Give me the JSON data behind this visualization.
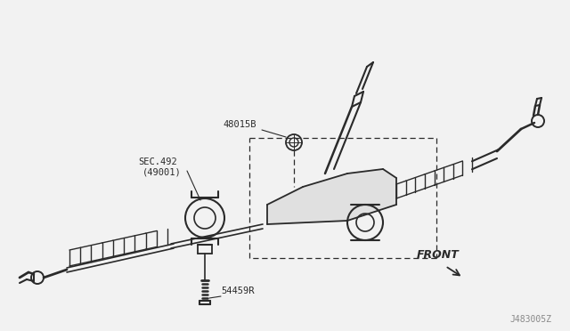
{
  "bg_color": "#f2f2f2",
  "line_color": "#2a2a2a",
  "text_color": "#2a2a2a",
  "watermark": "J483005Z",
  "label_48015B": "48015B",
  "label_sec492": "SEC.492",
  "label_49001": "(49001)",
  "label_54459R": "54459R",
  "label_front": "FRONT",
  "figsize": [
    6.4,
    3.72
  ],
  "dpi": 100
}
